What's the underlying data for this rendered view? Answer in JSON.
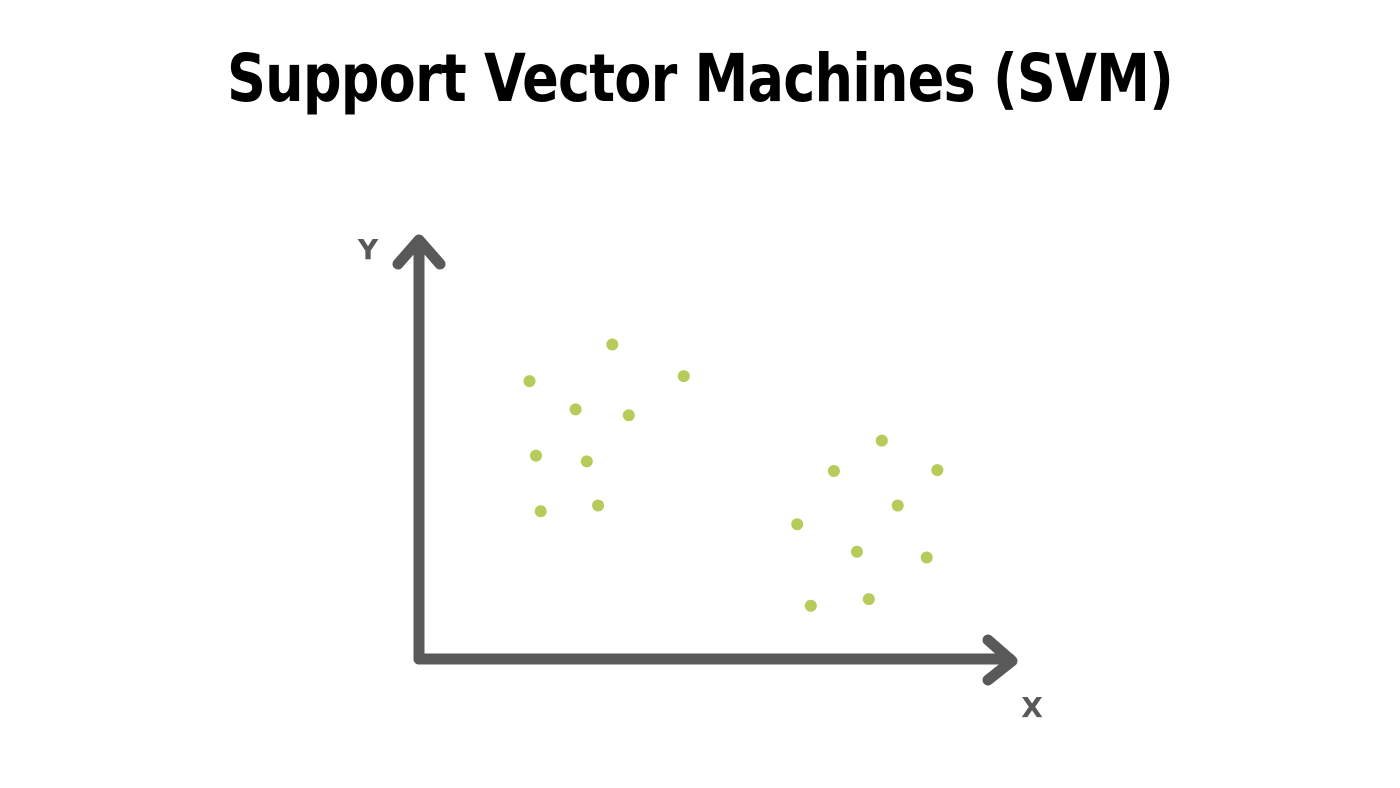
{
  "title": "Support Vector Machines (SVM)",
  "axes": {
    "x_label": "X",
    "y_label": "Y"
  },
  "colors": {
    "axis": "#595959",
    "point": "#b5cc5a",
    "title": "#000000"
  },
  "chart_data": {
    "type": "scatter",
    "title": "Support Vector Machines (SVM)",
    "xlabel": "X",
    "ylabel": "Y",
    "xlim": [
      0,
      100
    ],
    "ylim": [
      0,
      100
    ],
    "grid": false,
    "series": [
      {
        "points": [
          {
            "x": 18.7,
            "y": 66.8
          },
          {
            "x": 32.7,
            "y": 75.6
          },
          {
            "x": 44.8,
            "y": 68.0
          },
          {
            "x": 26.5,
            "y": 60.0
          },
          {
            "x": 35.5,
            "y": 58.6
          },
          {
            "x": 19.8,
            "y": 48.9
          },
          {
            "x": 28.4,
            "y": 47.5
          },
          {
            "x": 30.3,
            "y": 36.9
          },
          {
            "x": 20.6,
            "y": 35.5
          }
        ]
      },
      {
        "points": [
          {
            "x": 78.3,
            "y": 52.5
          },
          {
            "x": 70.2,
            "y": 45.2
          },
          {
            "x": 87.7,
            "y": 45.4
          },
          {
            "x": 81.0,
            "y": 36.9
          },
          {
            "x": 64.0,
            "y": 32.4
          },
          {
            "x": 74.1,
            "y": 25.8
          },
          {
            "x": 85.9,
            "y": 24.4
          },
          {
            "x": 76.1,
            "y": 14.4
          },
          {
            "x": 66.3,
            "y": 12.8
          }
        ]
      }
    ]
  }
}
